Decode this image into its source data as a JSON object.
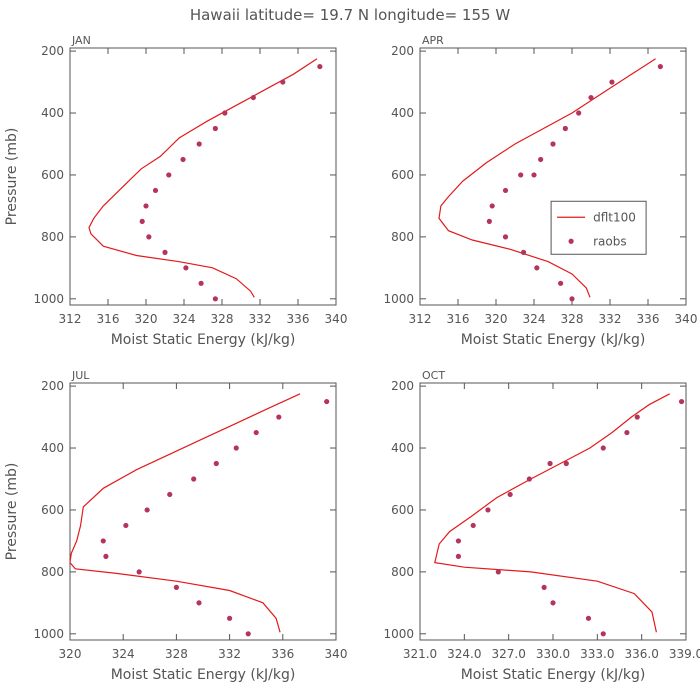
{
  "figure": {
    "title": "Hawaii  latitude= 19.7 N longitude= 155 W",
    "legend": {
      "items": [
        {
          "label": "dflt100",
          "kind": "line",
          "color": "#e31a1c"
        },
        {
          "label": "raobs",
          "kind": "marker",
          "color": "#b5345a"
        }
      ],
      "panel": "APR",
      "placement": "right-middle"
    },
    "colors": {
      "model": "#e31a1c",
      "obs": "#b5345a",
      "axis": "#555555"
    }
  },
  "chart_data": [
    {
      "type": "line",
      "panel_label": "JAN",
      "xlabel": "Moist Static Energy (kJ/kg)",
      "ylabel": "Pressure (mb)",
      "xlim": [
        312,
        340
      ],
      "ylim": [
        1020,
        190
      ],
      "xticks": [
        312,
        316,
        320,
        324,
        328,
        332,
        336,
        340
      ],
      "xtick_labels": [
        "312",
        "316",
        "320",
        "324",
        "328",
        "332",
        "336",
        "340"
      ],
      "yticks": [
        200,
        400,
        600,
        800,
        1000
      ],
      "ytick_labels": [
        "200",
        "400",
        "600",
        "800",
        "1000"
      ],
      "grid": false,
      "series": [
        {
          "name": "dflt100",
          "style": "line",
          "x": [
            338.0,
            335.5,
            332.5,
            329.5,
            326.5,
            323.5,
            321.5,
            319.5,
            317.5,
            315.5,
            314.5,
            314.0,
            314.2,
            315.5,
            319.0,
            323.5,
            327.0,
            329.5,
            331.0,
            331.4
          ],
          "y": [
            225,
            275,
            325,
            375,
            425,
            480,
            540,
            580,
            640,
            700,
            740,
            770,
            790,
            830,
            860,
            880,
            900,
            935,
            975,
            995
          ]
        },
        {
          "name": "raobs",
          "style": "marker",
          "x": [
            338.3,
            334.4,
            331.3,
            328.3,
            327.3,
            325.6,
            323.9,
            322.4,
            321.0,
            320.0,
            319.6,
            320.3,
            322.0,
            324.2,
            325.8,
            327.3
          ],
          "y": [
            250,
            300,
            350,
            400,
            450,
            500,
            550,
            600,
            650,
            700,
            750,
            800,
            850,
            900,
            950,
            1000
          ]
        }
      ]
    },
    {
      "type": "line",
      "panel_label": "APR",
      "xlabel": "Moist Static Energy (kJ/kg)",
      "ylabel": "",
      "xlim": [
        312,
        340
      ],
      "ylim": [
        1020,
        190
      ],
      "xticks": [
        312,
        316,
        320,
        324,
        328,
        332,
        336,
        340
      ],
      "xtick_labels": [
        "312",
        "316",
        "320",
        "324",
        "328",
        "332",
        "336",
        "340"
      ],
      "yticks": [
        200,
        400,
        600,
        800,
        1000
      ],
      "ytick_labels": [
        "200",
        "400",
        "600",
        "800",
        "1000"
      ],
      "grid": false,
      "series": [
        {
          "name": "dflt100",
          "style": "line",
          "x": [
            336.8,
            334.0,
            331.0,
            328.0,
            325.0,
            322.0,
            319.0,
            316.5,
            315.0,
            314.2,
            314.0,
            315.0,
            317.5,
            321.5,
            325.5,
            328.0,
            329.5,
            329.9
          ],
          "y": [
            225,
            280,
            340,
            400,
            450,
            500,
            560,
            620,
            670,
            700,
            740,
            780,
            810,
            840,
            880,
            920,
            965,
            995
          ]
        },
        {
          "name": "raobs",
          "style": "marker",
          "x": [
            337.3,
            332.2,
            330.0,
            328.7,
            327.3,
            326.0,
            324.7,
            324.0,
            322.6,
            321.0,
            319.6,
            319.3,
            321.0,
            322.9,
            324.3,
            326.8,
            328.0
          ],
          "y": [
            250,
            300,
            350,
            400,
            450,
            500,
            550,
            600,
            600,
            650,
            700,
            750,
            800,
            850,
            900,
            950,
            1000
          ]
        }
      ]
    },
    {
      "type": "line",
      "panel_label": "JUL",
      "xlabel": "Moist Static Energy (kJ/kg)",
      "ylabel": "Pressure (mb)",
      "xlim": [
        320,
        340
      ],
      "ylim": [
        1020,
        190
      ],
      "xticks": [
        320,
        324,
        328,
        332,
        336,
        340
      ],
      "xtick_labels": [
        "320",
        "324",
        "328",
        "332",
        "336",
        "340"
      ],
      "yticks": [
        200,
        400,
        600,
        800,
        1000
      ],
      "ytick_labels": [
        "200",
        "400",
        "600",
        "800",
        "1000"
      ],
      "grid": false,
      "series": [
        {
          "name": "dflt100",
          "style": "line",
          "x": [
            337.3,
            335.0,
            332.5,
            330.0,
            327.5,
            325.0,
            322.5,
            321.0,
            320.8,
            320.5,
            320.1,
            320.0,
            320.4,
            323.5,
            328.0,
            332.0,
            334.5,
            335.5,
            335.8
          ],
          "y": [
            225,
            270,
            320,
            370,
            420,
            470,
            530,
            590,
            650,
            700,
            740,
            770,
            790,
            805,
            830,
            860,
            900,
            950,
            995
          ]
        },
        {
          "name": "raobs",
          "style": "marker",
          "x": [
            339.3,
            335.7,
            334.0,
            332.5,
            331.0,
            329.3,
            327.5,
            325.8,
            324.2,
            322.5,
            322.7,
            325.2,
            328.0,
            329.7,
            332.0,
            333.4
          ],
          "y": [
            250,
            300,
            350,
            400,
            450,
            500,
            550,
            600,
            650,
            700,
            750,
            800,
            850,
            900,
            950,
            1000
          ]
        }
      ]
    },
    {
      "type": "line",
      "panel_label": "OCT",
      "xlabel": "Moist Static Energy (kJ/kg)",
      "ylabel": "",
      "xlim": [
        321,
        339
      ],
      "ylim": [
        1020,
        190
      ],
      "xticks": [
        321,
        324,
        327,
        330,
        333,
        336,
        339
      ],
      "xtick_labels": [
        "321.0",
        "324.0",
        "327.0",
        "330.0",
        "333.0",
        "336.0",
        "339.0"
      ],
      "yticks": [
        200,
        400,
        600,
        800,
        1000
      ],
      "ytick_labels": [
        "200",
        "400",
        "600",
        "800",
        "1000"
      ],
      "grid": false,
      "series": [
        {
          "name": "dflt100",
          "style": "line",
          "x": [
            337.9,
            336.5,
            335.3,
            334.0,
            332.5,
            330.5,
            328.5,
            326.2,
            324.5,
            323.0,
            322.3,
            322.0,
            324.0,
            328.5,
            333.0,
            335.5,
            336.7,
            337.0
          ],
          "y": [
            225,
            260,
            300,
            350,
            400,
            450,
            500,
            560,
            620,
            670,
            710,
            770,
            785,
            800,
            830,
            870,
            930,
            995
          ]
        },
        {
          "name": "raobs",
          "style": "marker",
          "x": [
            338.7,
            335.7,
            335.0,
            333.4,
            330.9,
            329.8,
            328.4,
            327.1,
            325.6,
            324.6,
            323.6,
            323.6,
            326.3,
            329.4,
            330.0,
            332.4,
            333.4
          ],
          "y": [
            250,
            300,
            350,
            400,
            450,
            450,
            500,
            550,
            600,
            650,
            700,
            750,
            800,
            850,
            900,
            950,
            1000
          ]
        }
      ]
    }
  ]
}
